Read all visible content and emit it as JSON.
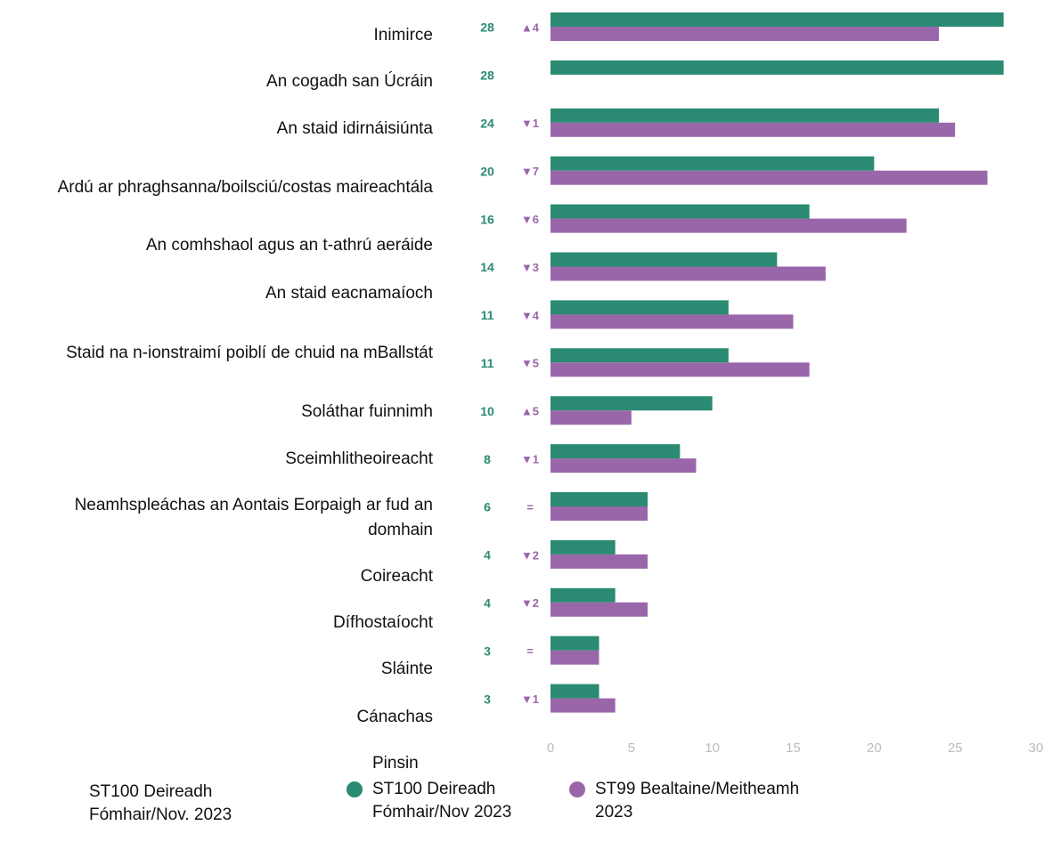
{
  "chart_data": {
    "type": "barh",
    "categories": [
      "Inimirce",
      "An cogadh san Úcráin",
      "An staid idirnáisiúnta",
      "Ardú ar phraghsanna/boilsciú/costas maireachtála",
      "An comhshaol agus an t-athrú aeráide",
      "An staid eacnamaíoch",
      "Staid na n-ionstraimí poiblí de chuid na mBallstát",
      "Soláthar fuinnimh",
      "Sceimhlitheoireacht",
      "Neamhspleáchas an Aontais Eorpaigh ar fud an domhain",
      "Coireacht",
      "Dífhostaíocht",
      "Sláinte",
      "Cánachas",
      null
    ],
    "series": [
      {
        "name": "ST100 Deireadh Fómhair/Nov 2023",
        "color": "#2a8a72",
        "values": [
          28,
          28,
          24,
          20,
          16,
          14,
          11,
          11,
          10,
          8,
          6,
          4,
          4,
          3,
          3
        ]
      },
      {
        "name": "ST99 Bealtaine/Meitheamh 2023",
        "color": "#9966aa",
        "values": [
          24,
          null,
          25,
          27,
          22,
          17,
          15,
          16,
          5,
          9,
          6,
          6,
          6,
          3,
          4
        ]
      }
    ],
    "change_labels": [
      "▲4",
      null,
      "▼1",
      "▼7",
      "▼6",
      "▼3",
      "▼4",
      "▼5",
      "▲5",
      "▼1",
      "=",
      "▼2",
      "▼2",
      "=",
      "▼1"
    ],
    "legend_title": "Pinsin",
    "caption": "ST100 Deireadh Fómhair/Nov. 2023",
    "xlim": [
      0,
      30
    ],
    "xticks": [
      0,
      5,
      10,
      15,
      20,
      25,
      30
    ]
  }
}
